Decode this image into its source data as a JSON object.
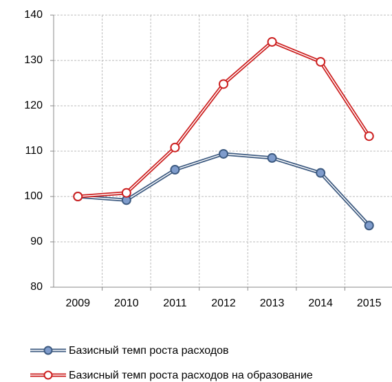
{
  "chart_data": {
    "type": "line",
    "categories": [
      "2009",
      "2010",
      "2011",
      "2012",
      "2013",
      "2014",
      "2015"
    ],
    "series": [
      {
        "name": "Базисный темп роста расходов",
        "color": "#3d5a80",
        "marker_fill": "#7f9ccc",
        "values": [
          100,
          99.2,
          105.9,
          109.4,
          108.5,
          105.2,
          93.6
        ]
      },
      {
        "name": "Базисный темп роста расходов на образование",
        "color": "#cc1f1f",
        "marker_fill": "#ffffff",
        "values": [
          100,
          100.8,
          110.8,
          124.8,
          134.1,
          129.7,
          113.3
        ]
      }
    ],
    "ylim": [
      80,
      140
    ],
    "yticks": [
      80,
      90,
      100,
      110,
      120,
      130,
      140
    ],
    "grid": true,
    "legend": "bottom"
  }
}
